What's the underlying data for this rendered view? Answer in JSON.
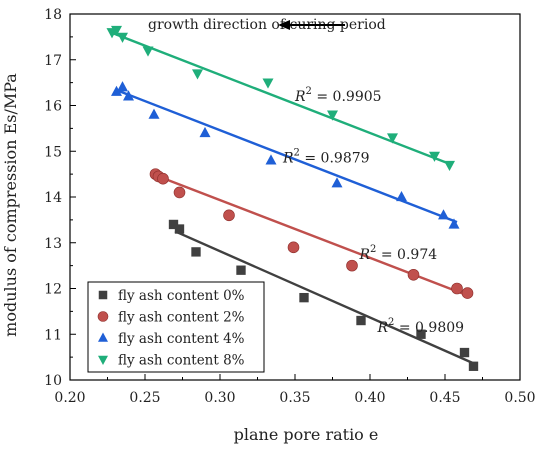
{
  "chart_data": {
    "type": "scatter",
    "title": "",
    "xlabel": "plane pore ratio e",
    "ylabel": "modulus of compression Es/MPa",
    "xlim": [
      0.2,
      0.5
    ],
    "ylim": [
      10,
      18
    ],
    "xticks": [
      "0.20",
      "0.25",
      "0.30",
      "0.35",
      "0.40",
      "0.45",
      "0.50"
    ],
    "yticks": [
      "10",
      "11",
      "12",
      "13",
      "14",
      "15",
      "16",
      "17",
      "18"
    ],
    "grid": false,
    "legend_position": "bottom-left",
    "annotation": "growth direction of curing period",
    "series": [
      {
        "name": "fly ash content 0%",
        "marker": "square",
        "color": "#404040",
        "r2_label": "= 0.9809",
        "points": [
          [
            0.269,
            13.4
          ],
          [
            0.273,
            13.3
          ],
          [
            0.284,
            12.8
          ],
          [
            0.314,
            12.4
          ],
          [
            0.356,
            11.8
          ],
          [
            0.394,
            11.3
          ],
          [
            0.434,
            11.0
          ],
          [
            0.463,
            10.6
          ],
          [
            0.469,
            10.3
          ]
        ],
        "fit": [
          [
            0.27,
            13.25
          ],
          [
            0.47,
            10.35
          ]
        ]
      },
      {
        "name": "fly ash content 2%",
        "marker": "circle",
        "color": "#c0504d",
        "r2_label": "= 0.974",
        "points": [
          [
            0.257,
            14.5
          ],
          [
            0.259,
            14.45
          ],
          [
            0.262,
            14.4
          ],
          [
            0.273,
            14.1
          ],
          [
            0.306,
            13.6
          ],
          [
            0.349,
            12.9
          ],
          [
            0.388,
            12.5
          ],
          [
            0.429,
            12.3
          ],
          [
            0.458,
            12.0
          ],
          [
            0.465,
            11.9
          ]
        ],
        "fit": [
          [
            0.255,
            14.5
          ],
          [
            0.465,
            11.85
          ]
        ]
      },
      {
        "name": "fly ash content 4%",
        "marker": "triangle-up",
        "color": "#1f5fd6",
        "r2_label": "= 0.9879",
        "points": [
          [
            0.231,
            16.3
          ],
          [
            0.235,
            16.4
          ],
          [
            0.239,
            16.2
          ],
          [
            0.256,
            15.8
          ],
          [
            0.29,
            15.4
          ],
          [
            0.334,
            14.8
          ],
          [
            0.378,
            14.3
          ],
          [
            0.421,
            14.0
          ],
          [
            0.449,
            13.6
          ],
          [
            0.456,
            13.4
          ]
        ],
        "fit": [
          [
            0.23,
            16.35
          ],
          [
            0.458,
            13.45
          ]
        ]
      },
      {
        "name": "fly ash content 8%",
        "marker": "triangle-down",
        "color": "#1fae7a",
        "r2_label": "= 0.9905",
        "points": [
          [
            0.228,
            17.6
          ],
          [
            0.231,
            17.65
          ],
          [
            0.235,
            17.5
          ],
          [
            0.252,
            17.2
          ],
          [
            0.285,
            16.7
          ],
          [
            0.332,
            16.5
          ],
          [
            0.375,
            15.8
          ],
          [
            0.415,
            15.3
          ],
          [
            0.443,
            14.9
          ],
          [
            0.453,
            14.7
          ]
        ],
        "fit": [
          [
            0.227,
            17.6
          ],
          [
            0.455,
            14.7
          ]
        ]
      }
    ]
  }
}
